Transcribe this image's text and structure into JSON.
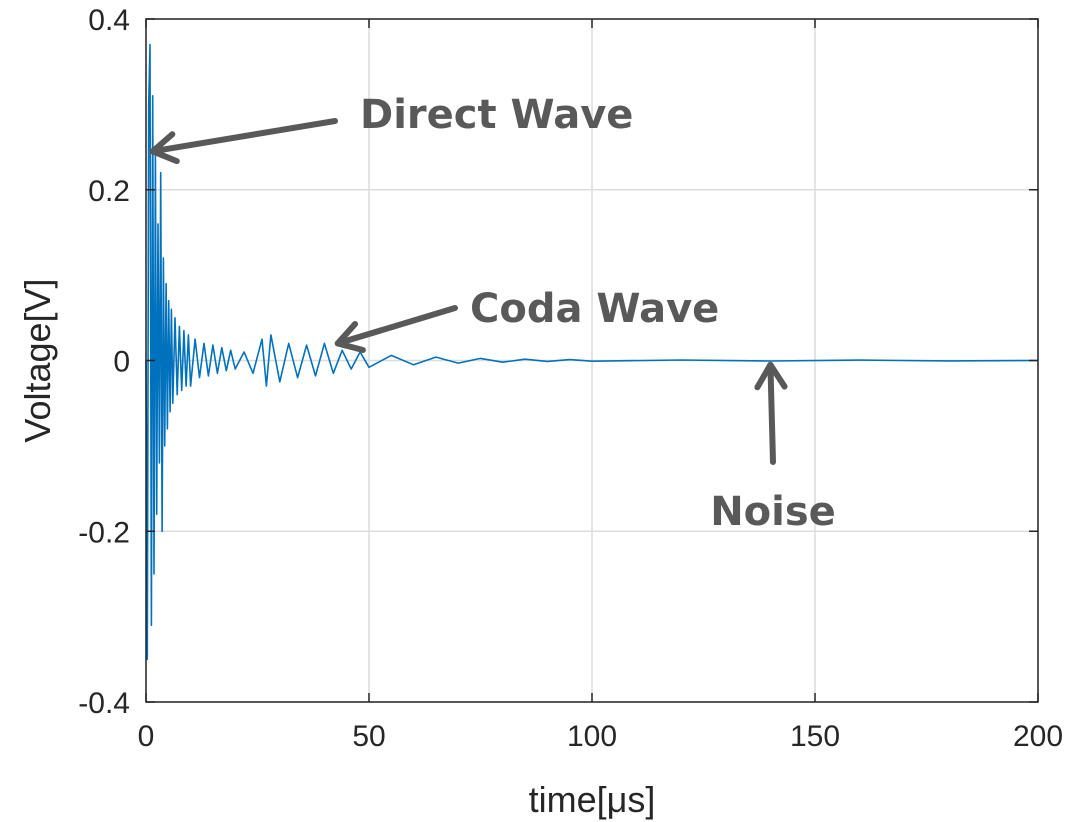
{
  "chart_data": {
    "type": "line",
    "xlabel": "time[μs]",
    "ylabel": "Voltage[V]",
    "xlim": [
      0,
      200
    ],
    "ylim": [
      -0.4,
      0.4
    ],
    "xticks": [
      0,
      50,
      100,
      150,
      200
    ],
    "xtick_labels": [
      "0",
      "50",
      "100",
      "150",
      "200"
    ],
    "yticks": [
      -0.4,
      -0.2,
      0,
      0.2,
      0.4
    ],
    "ytick_labels": [
      "-0.4",
      "-0.2",
      "0",
      "0.2",
      "0.4"
    ],
    "grid": true,
    "colors": {
      "series": "#0072BD",
      "annotation": "#595959",
      "axes": "#262626",
      "grid": "#dcdcdc"
    },
    "series": [
      {
        "color": "#0072BD",
        "x": [
          0,
          0.3,
          0.6,
          0.9,
          1.2,
          1.5,
          1.8,
          2.1,
          2.4,
          2.7,
          3.0,
          3.3,
          3.6,
          3.9,
          4.2,
          4.5,
          4.8,
          5.1,
          5.4,
          5.7,
          6.0,
          6.5,
          7,
          7.5,
          8,
          8.5,
          9,
          9.5,
          10,
          11,
          12,
          13,
          14,
          15,
          16,
          17,
          18,
          19,
          20,
          22,
          24,
          26,
          27,
          28,
          30,
          32,
          34,
          36,
          38,
          40,
          42,
          44,
          46,
          48,
          50,
          55,
          60,
          65,
          70,
          75,
          80,
          85,
          90,
          95,
          100,
          120,
          140,
          160,
          180,
          200
        ],
        "y": [
          0,
          -0.35,
          0.3,
          0.37,
          -0.31,
          0.31,
          -0.25,
          0.24,
          -0.18,
          0.16,
          -0.12,
          0.22,
          -0.2,
          0.12,
          -0.1,
          0.09,
          -0.08,
          0.07,
          -0.06,
          0.06,
          -0.05,
          0.05,
          -0.04,
          0.04,
          -0.035,
          0.035,
          -0.03,
          0.03,
          -0.03,
          0.025,
          -0.02,
          0.02,
          -0.018,
          0.018,
          -0.015,
          0.015,
          -0.012,
          0.012,
          -0.01,
          0.01,
          -0.015,
          0.025,
          -0.03,
          0.03,
          -0.025,
          0.02,
          -0.02,
          0.018,
          -0.018,
          0.02,
          -0.015,
          0.012,
          -0.01,
          0.01,
          -0.008,
          0.006,
          -0.005,
          0.004,
          -0.003,
          0.0025,
          -0.002,
          0.0015,
          -0.001,
          0.001,
          -0.0008,
          0.0006,
          -0.0006,
          0.0005,
          -0.0005,
          0
        ]
      }
    ],
    "annotations": [
      {
        "text": "Direct Wave",
        "x": 1.5,
        "y": 0.245
      },
      {
        "text": "Coda Wave",
        "x": 43,
        "y": 0.02
      },
      {
        "text": "Noise",
        "x": 140,
        "y": -0.005
      }
    ]
  }
}
